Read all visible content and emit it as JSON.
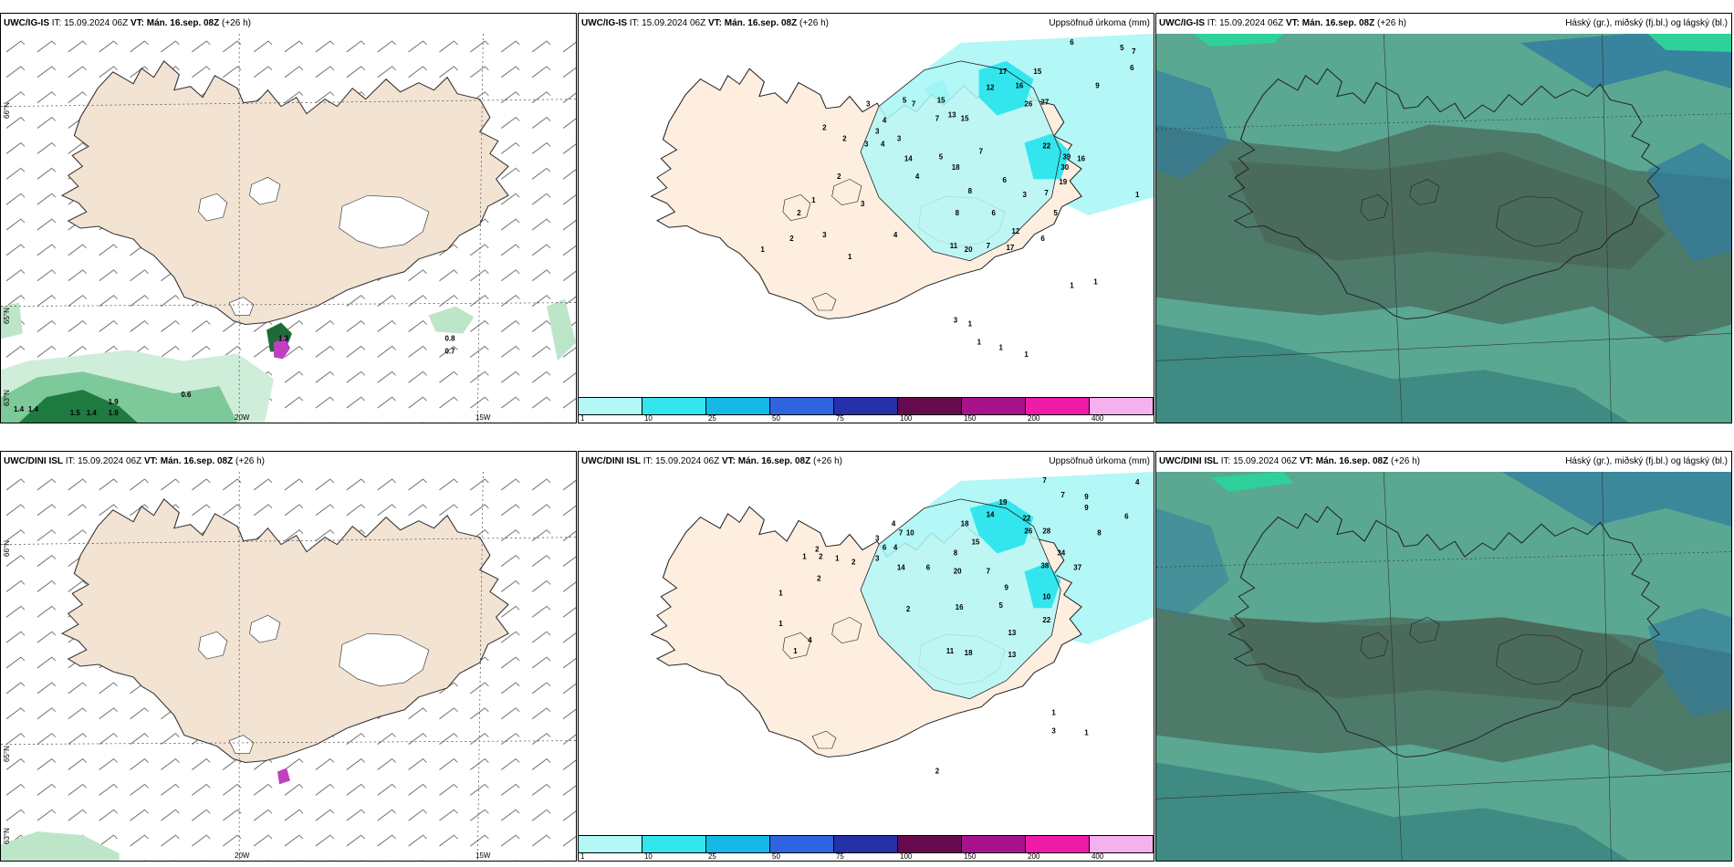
{
  "panels": [
    {
      "model": "UWC/IG-IS",
      "it_label": "IT:",
      "it_value": "15.09.2024 06Z",
      "vt_label": "VT:",
      "vt_value": "Mán. 16.sep. 08Z",
      "lead": "(+26 h)",
      "title": ""
    },
    {
      "model": "UWC/IG-IS",
      "it_label": "IT:",
      "it_value": "15.09.2024 06Z",
      "vt_label": "VT:",
      "vt_value": "Mán. 16.sep. 08Z",
      "lead": "(+26 h)",
      "title": "Uppsöfnuð úrkoma (mm)"
    },
    {
      "model": "UWC/IG-IS",
      "it_label": "IT:",
      "it_value": "15.09.2024 06Z",
      "vt_label": "VT:",
      "vt_value": "Mán. 16.sep. 08Z",
      "lead": "(+26 h)",
      "title": "Háský (gr.), miðský (fj.bl.) og lágský (bl.)"
    },
    {
      "model": "UWC/DINI ISL",
      "it_label": "IT:",
      "it_value": "15.09.2024 06Z",
      "vt_label": "VT:",
      "vt_value": "Mán. 16.sep. 08Z",
      "lead": "(+26 h)",
      "title": ""
    },
    {
      "model": "UWC/DINI ISL",
      "it_label": "IT:",
      "it_value": "15.09.2024 06Z",
      "vt_label": "VT:",
      "vt_value": "Mán. 16.sep. 08Z",
      "lead": "(+26 h)",
      "title": "Uppsöfnuð úrkoma (mm)"
    },
    {
      "model": "UWC/DINI ISL",
      "it_label": "IT:",
      "it_value": "15.09.2024 06Z",
      "vt_label": "VT:",
      "vt_value": "Mán. 16.sep. 08Z",
      "lead": "(+26 h)",
      "title": "Háský (gr.), miðský (fj.bl.) og lágský (bl.)"
    }
  ],
  "axis": {
    "lat66": "66°N",
    "lat65": "65°N",
    "lat63": "63°N",
    "lon20": "20W",
    "lon15": "15W"
  },
  "precip_legend": {
    "labels": [
      "1",
      "10",
      "25",
      "50",
      "75",
      "100",
      "150",
      "200",
      "400"
    ],
    "colors": [
      "#b3f7f7",
      "#33e6ee",
      "#15b9e8",
      "#2f64e0",
      "#2431a8",
      "#660a4d",
      "#a8118c",
      "#ee1aa8",
      "#f4b1ee"
    ]
  },
  "wind_panel_values": {
    "top": [
      "1.3",
      "0.8",
      "0.7",
      "0.6",
      "1.9",
      "1.9",
      "1.4",
      "1.4",
      "1.5",
      "1.4"
    ],
    "bottom": []
  },
  "precip_values": {
    "top": [
      "6",
      "5",
      "7",
      "6",
      "9",
      "15",
      "17",
      "12",
      "16",
      "26",
      "27",
      "13",
      "15",
      "3",
      "5",
      "7",
      "15",
      "7",
      "4",
      "2",
      "3",
      "2",
      "3",
      "4",
      "3",
      "14",
      "5",
      "18",
      "7",
      "22",
      "39",
      "16",
      "30",
      "19",
      "7",
      "5",
      "3",
      "4",
      "2",
      "1",
      "3",
      "8",
      "6",
      "8",
      "6",
      "2",
      "2",
      "1",
      "1",
      "3",
      "4",
      "11",
      "20",
      "7",
      "17",
      "12",
      "6",
      "1",
      "1",
      "1",
      "3",
      "1",
      "1",
      "1",
      "1"
    ],
    "bottom": [
      "7",
      "4",
      "7",
      "9",
      "9",
      "6",
      "8",
      "14",
      "22",
      "19",
      "18",
      "26",
      "28",
      "15",
      "8",
      "34",
      "38",
      "37",
      "4",
      "7",
      "10",
      "3",
      "6",
      "4",
      "3",
      "14",
      "6",
      "20",
      "7",
      "9",
      "10",
      "22",
      "13",
      "5",
      "16",
      "11",
      "18",
      "13",
      "2",
      "1",
      "2",
      "1",
      "2",
      "1",
      "2",
      "4",
      "1",
      "1",
      "2",
      "1",
      "3",
      "1",
      "2"
    ]
  }
}
